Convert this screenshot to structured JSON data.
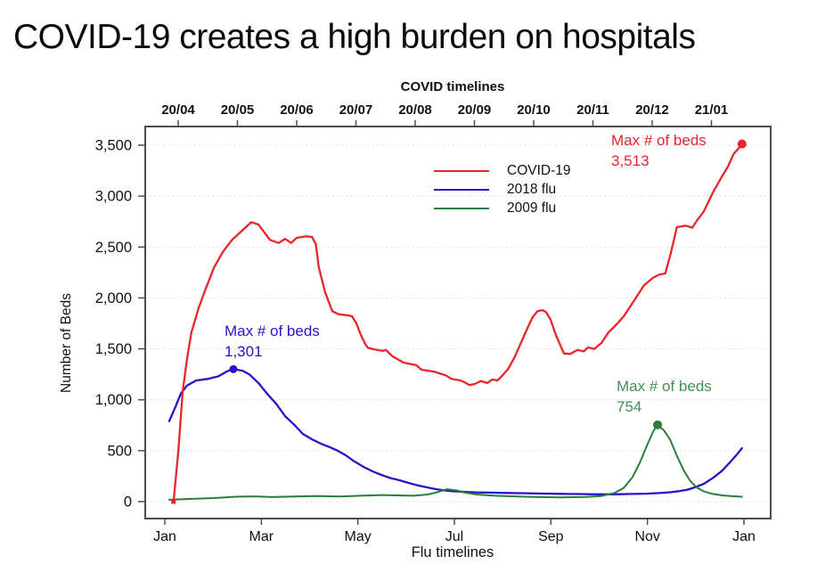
{
  "title": "COVID-19 creates a high burden on hospitals",
  "chart": {
    "annotations": [
      {
        "id": "covid-max",
        "label": "Max # of beds",
        "value": "3,513",
        "color": "#e8252a"
      },
      {
        "id": "flu2018-max",
        "label": "Max # of beds",
        "value": "1,301",
        "color": "#2a12c8"
      },
      {
        "id": "flu2009-max",
        "label": "Max # of beds",
        "value": "754",
        "color": "#3f9155"
      }
    ],
    "frame_color": "#4d4d4d",
    "grid_color": "#eadcdc"
  },
  "chart_data": {
    "type": "line",
    "title": "COVID-19 creates a high burden on hospitals",
    "x_axis": {
      "label": "Flu timelines",
      "unit": "month index, 0 = January, 12 = following January",
      "ticks": [
        "Jan",
        "Mar",
        "May",
        "Jul",
        "Sep",
        "Nov",
        "Jan"
      ]
    },
    "secondary_x_axis": {
      "label": "COVID timelines",
      "ticks": [
        "20/04",
        "20/05",
        "20/06",
        "20/07",
        "20/08",
        "20/09",
        "20/10",
        "20/11",
        "20/12",
        "21/01"
      ]
    },
    "ylabel": "Number of Beds",
    "ylim": [
      0,
      3500
    ],
    "y_tick_labels": [
      "0",
      "500",
      "1,000",
      "1,500",
      "2,000",
      "2,500",
      "3,000",
      "3,500"
    ],
    "grid": "horizontal-dotted",
    "legend_position": "upper-center-left",
    "series": [
      {
        "name": "COVID-19",
        "color": "#e8252a",
        "width": 2.3,
        "max": 3513,
        "points": [
          [
            0.18,
            0
          ],
          [
            0.28,
            500
          ],
          [
            0.37,
            1080
          ],
          [
            0.46,
            1400
          ],
          [
            0.55,
            1660
          ],
          [
            0.7,
            1900
          ],
          [
            0.83,
            2070
          ],
          [
            1.02,
            2300
          ],
          [
            1.2,
            2450
          ],
          [
            1.38,
            2565
          ],
          [
            1.62,
            2670
          ],
          [
            1.79,
            2745
          ],
          [
            1.94,
            2720
          ],
          [
            2.18,
            2570
          ],
          [
            2.36,
            2540
          ],
          [
            2.49,
            2580
          ],
          [
            2.62,
            2540
          ],
          [
            2.73,
            2590
          ],
          [
            2.92,
            2605
          ],
          [
            3.05,
            2600
          ],
          [
            3.13,
            2530
          ],
          [
            3.19,
            2300
          ],
          [
            3.32,
            2060
          ],
          [
            3.47,
            1870
          ],
          [
            3.6,
            1840
          ],
          [
            3.78,
            1830
          ],
          [
            3.88,
            1820
          ],
          [
            3.97,
            1750
          ],
          [
            4.06,
            1640
          ],
          [
            4.15,
            1550
          ],
          [
            4.21,
            1510
          ],
          [
            4.34,
            1495
          ],
          [
            4.52,
            1480
          ],
          [
            4.58,
            1490
          ],
          [
            4.71,
            1430
          ],
          [
            4.95,
            1365
          ],
          [
            5.21,
            1340
          ],
          [
            5.32,
            1295
          ],
          [
            5.58,
            1277
          ],
          [
            5.82,
            1240
          ],
          [
            5.94,
            1205
          ],
          [
            6.13,
            1190
          ],
          [
            6.24,
            1165
          ],
          [
            6.31,
            1145
          ],
          [
            6.42,
            1155
          ],
          [
            6.55,
            1185
          ],
          [
            6.68,
            1165
          ],
          [
            6.79,
            1200
          ],
          [
            6.89,
            1190
          ],
          [
            6.98,
            1230
          ],
          [
            7.11,
            1300
          ],
          [
            7.25,
            1420
          ],
          [
            7.38,
            1560
          ],
          [
            7.51,
            1700
          ],
          [
            7.62,
            1810
          ],
          [
            7.72,
            1870
          ],
          [
            7.83,
            1880
          ],
          [
            7.9,
            1860
          ],
          [
            7.99,
            1790
          ],
          [
            8.1,
            1640
          ],
          [
            8.21,
            1520
          ],
          [
            8.27,
            1455
          ],
          [
            8.4,
            1450
          ],
          [
            8.55,
            1490
          ],
          [
            8.68,
            1475
          ],
          [
            8.77,
            1515
          ],
          [
            8.9,
            1500
          ],
          [
            9.05,
            1560
          ],
          [
            9.19,
            1660
          ],
          [
            9.38,
            1750
          ],
          [
            9.51,
            1820
          ],
          [
            9.69,
            1950
          ],
          [
            9.93,
            2125
          ],
          [
            10.12,
            2200
          ],
          [
            10.25,
            2230
          ],
          [
            10.37,
            2240
          ],
          [
            10.49,
            2450
          ],
          [
            10.61,
            2695
          ],
          [
            10.8,
            2710
          ],
          [
            10.93,
            2690
          ],
          [
            11.04,
            2770
          ],
          [
            11.17,
            2850
          ],
          [
            11.35,
            3030
          ],
          [
            11.54,
            3190
          ],
          [
            11.67,
            3290
          ],
          [
            11.78,
            3410
          ],
          [
            11.91,
            3480
          ],
          [
            11.96,
            3513
          ]
        ]
      },
      {
        "name": "2018 flu",
        "color": "#2a12c8",
        "width": 2.3,
        "max": 1301,
        "points": [
          [
            0.09,
            790
          ],
          [
            0.22,
            930
          ],
          [
            0.33,
            1060
          ],
          [
            0.46,
            1140
          ],
          [
            0.65,
            1190
          ],
          [
            0.89,
            1205
          ],
          [
            1.11,
            1230
          ],
          [
            1.29,
            1280
          ],
          [
            1.42,
            1301
          ],
          [
            1.61,
            1285
          ],
          [
            1.75,
            1250
          ],
          [
            1.94,
            1165
          ],
          [
            2.12,
            1060
          ],
          [
            2.31,
            960
          ],
          [
            2.49,
            840
          ],
          [
            2.68,
            755
          ],
          [
            2.86,
            665
          ],
          [
            3.05,
            612
          ],
          [
            3.23,
            570
          ],
          [
            3.42,
            535
          ],
          [
            3.56,
            505
          ],
          [
            3.75,
            455
          ],
          [
            3.91,
            400
          ],
          [
            4.12,
            340
          ],
          [
            4.3,
            298
          ],
          [
            4.49,
            262
          ],
          [
            4.67,
            232
          ],
          [
            4.86,
            210
          ],
          [
            5.04,
            185
          ],
          [
            5.22,
            162
          ],
          [
            5.41,
            143
          ],
          [
            5.59,
            125
          ],
          [
            5.78,
            110
          ],
          [
            5.96,
            102
          ],
          [
            6.18,
            96
          ],
          [
            6.46,
            90
          ],
          [
            6.74,
            88
          ],
          [
            7.11,
            85
          ],
          [
            7.48,
            82
          ],
          [
            7.85,
            79
          ],
          [
            8.21,
            76
          ],
          [
            8.58,
            74
          ],
          [
            8.95,
            72
          ],
          [
            9.32,
            72
          ],
          [
            9.69,
            75
          ],
          [
            9.97,
            78
          ],
          [
            10.25,
            84
          ],
          [
            10.47,
            92
          ],
          [
            10.65,
            102
          ],
          [
            10.84,
            118
          ],
          [
            10.98,
            140
          ],
          [
            11.17,
            175
          ],
          [
            11.35,
            230
          ],
          [
            11.54,
            300
          ],
          [
            11.72,
            390
          ],
          [
            11.85,
            460
          ],
          [
            11.96,
            525
          ]
        ]
      },
      {
        "name": "2009 flu",
        "color": "#2b7d3e",
        "width": 2.0,
        "max": 754,
        "points": [
          [
            0.09,
            18
          ],
          [
            0.46,
            25
          ],
          [
            1.02,
            35
          ],
          [
            1.48,
            48
          ],
          [
            1.85,
            52
          ],
          [
            2.22,
            45
          ],
          [
            2.68,
            50
          ],
          [
            3.14,
            55
          ],
          [
            3.6,
            50
          ],
          [
            4.06,
            58
          ],
          [
            4.52,
            65
          ],
          [
            4.89,
            60
          ],
          [
            5.17,
            58
          ],
          [
            5.45,
            70
          ],
          [
            5.67,
            95
          ],
          [
            5.85,
            122
          ],
          [
            6.04,
            110
          ],
          [
            6.22,
            88
          ],
          [
            6.46,
            70
          ],
          [
            6.83,
            58
          ],
          [
            7.29,
            50
          ],
          [
            7.75,
            45
          ],
          [
            8.21,
            42
          ],
          [
            8.68,
            45
          ],
          [
            9.05,
            55
          ],
          [
            9.32,
            85
          ],
          [
            9.51,
            135
          ],
          [
            9.69,
            240
          ],
          [
            9.84,
            380
          ],
          [
            9.99,
            550
          ],
          [
            10.12,
            690
          ],
          [
            10.21,
            754
          ],
          [
            10.34,
            700
          ],
          [
            10.47,
            610
          ],
          [
            10.61,
            450
          ],
          [
            10.76,
            300
          ],
          [
            10.89,
            200
          ],
          [
            11.02,
            140
          ],
          [
            11.17,
            100
          ],
          [
            11.35,
            75
          ],
          [
            11.57,
            60
          ],
          [
            11.76,
            53
          ],
          [
            11.96,
            48
          ]
        ]
      }
    ],
    "markers": [
      {
        "series": "COVID-19",
        "x": 11.96,
        "y": 3513,
        "shape": "circle",
        "r": 5
      },
      {
        "series": "COVID-19",
        "x": 0.18,
        "y": 0,
        "shape": "square",
        "r": 2.5
      },
      {
        "series": "2018 flu",
        "x": 1.42,
        "y": 1301,
        "shape": "circle",
        "r": 4.5
      },
      {
        "series": "2009 flu",
        "x": 10.21,
        "y": 754,
        "shape": "circle",
        "r": 5
      }
    ]
  }
}
